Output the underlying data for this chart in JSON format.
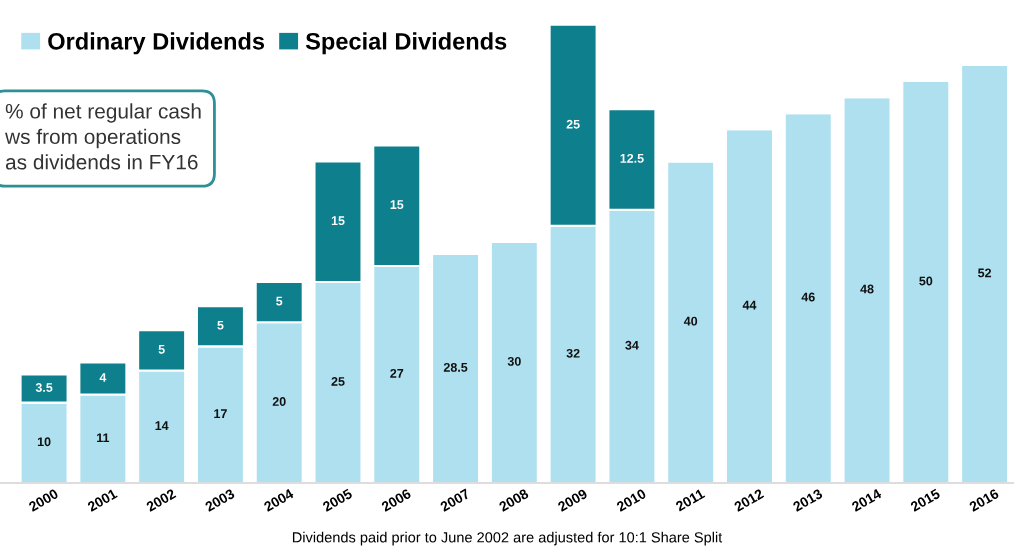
{
  "chart_data": {
    "type": "bar",
    "stacked": true,
    "data_labels": true,
    "legend": "top left",
    "grid": false,
    "tick_labels": "x",
    "categories": [
      "2000",
      "2001",
      "2002",
      "2003",
      "2004",
      "2005",
      "2006",
      "2007",
      "2008",
      "2009",
      "2010",
      "2011",
      "2012",
      "2013",
      "2014",
      "2015",
      "2016"
    ],
    "series": [
      {
        "name": "Ordinary Dividends",
        "color": "#aee0ef",
        "values": [
          10,
          11,
          14,
          17,
          20,
          25,
          27,
          28.5,
          30,
          32,
          34,
          40,
          44,
          46,
          48,
          50,
          52
        ]
      },
      {
        "name": "Special Dividends",
        "color": "#0e7f8c",
        "values": [
          3.5,
          4,
          5,
          5,
          5,
          15,
          15,
          null,
          null,
          25,
          12.5,
          null,
          null,
          null,
          null,
          null,
          null
        ]
      }
    ],
    "annotations": [
      "% of net regular cash\nws from operations\nas dividends in FY16",
      "Dividends paid prior to June 2002 are adjusted for 10:1 Share Split"
    ]
  }
}
